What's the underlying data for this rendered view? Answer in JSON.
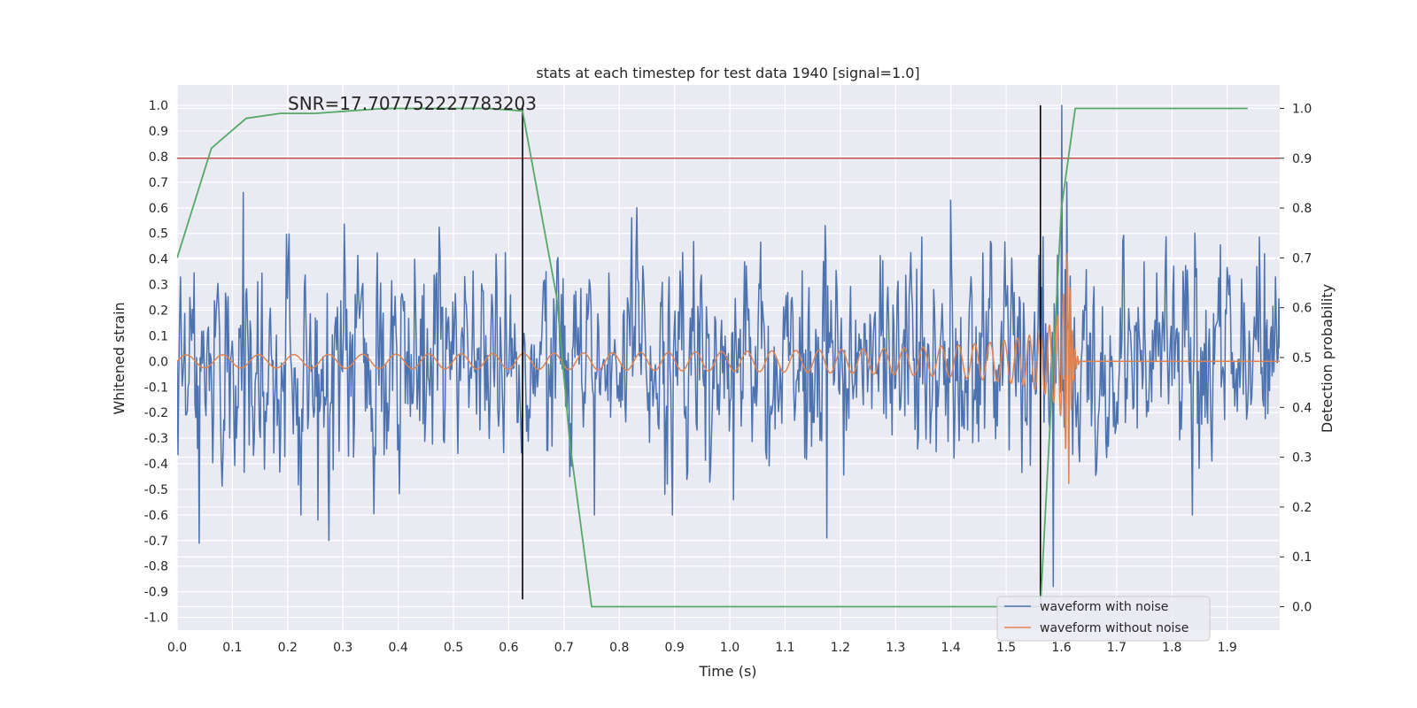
{
  "chart_data": {
    "type": "line",
    "title": "stats at each timestep for test data 1940 [signal=1.0]",
    "annotation": "SNR=17.707752227783203",
    "xlabel": "Time (s)",
    "ylabel_left": "Whitened strain",
    "ylabel_right": "Detection probability",
    "xlim": [
      0.0,
      1.995
    ],
    "ylim_left": [
      -1.05,
      1.08
    ],
    "ylim_right": [
      -0.047,
      1.047
    ],
    "x_ticks": [
      "0.0",
      "0.1",
      "0.2",
      "0.3",
      "0.4",
      "0.5",
      "0.6",
      "0.7",
      "0.8",
      "0.9",
      "1.0",
      "1.1",
      "1.2",
      "1.3",
      "1.4",
      "1.5",
      "1.6",
      "1.7",
      "1.8",
      "1.9"
    ],
    "y_ticks_left": [
      "-1.0",
      "-0.9",
      "-0.8",
      "-0.7",
      "-0.6",
      "-0.5",
      "-0.4",
      "-0.3",
      "-0.2",
      "-0.1",
      "0.0",
      "0.1",
      "0.2",
      "0.3",
      "0.4",
      "0.5",
      "0.6",
      "0.7",
      "0.8",
      "0.9",
      "1.0"
    ],
    "y_ticks_right": [
      "0.0",
      "0.1",
      "0.2",
      "0.3",
      "0.4",
      "0.5",
      "0.6",
      "0.7",
      "0.8",
      "0.9",
      "1.0"
    ],
    "grid": true,
    "legend_position": "bottom-right",
    "colors": {
      "noisy": "#4c72b0",
      "clean": "#dd8452",
      "probability": "#55a868",
      "threshold": "#c44e52",
      "marker": "#000000",
      "background": "#eaeaf2",
      "grid": "#ffffff"
    },
    "series": [
      {
        "name": "waveform with noise",
        "axis": "left",
        "style": "noise",
        "t_range": [
          0.0,
          1.995
        ],
        "std": 0.19,
        "peaks": [
          {
            "x": 0.04,
            "y": -0.71
          },
          {
            "x": 0.12,
            "y": 0.66
          },
          {
            "x": 0.255,
            "y": -0.62
          },
          {
            "x": 0.275,
            "y": -0.7
          },
          {
            "x": 1.175,
            "y": -0.69
          },
          {
            "x": 1.4,
            "y": 0.63
          },
          {
            "x": 1.585,
            "y": -0.88
          },
          {
            "x": 1.6,
            "y": 1.0
          },
          {
            "x": 1.61,
            "y": 0.7
          }
        ]
      },
      {
        "name": "waveform without noise",
        "axis": "left",
        "style": "chirp",
        "t_merger": 1.612,
        "t_end": 1.995,
        "amplitude_start": 0.025,
        "amplitude_peak": 0.62,
        "freq_start": 15,
        "freq_end": 220
      },
      {
        "name": "",
        "axis": "right",
        "style": "line",
        "x": [
          0.0,
          0.062,
          0.125,
          0.187,
          0.25,
          0.312,
          0.375,
          0.437,
          0.5,
          0.562,
          0.625,
          0.687,
          0.711,
          0.75,
          0.812,
          0.875,
          0.937,
          1.0,
          1.062,
          1.125,
          1.187,
          1.25,
          1.312,
          1.375,
          1.437,
          1.5,
          1.562,
          1.6,
          1.625,
          1.687,
          1.75,
          1.812,
          1.875,
          1.937
        ],
        "y": [
          0.7,
          0.92,
          0.98,
          0.99,
          0.99,
          0.995,
          1.0,
          1.0,
          1.0,
          1.0,
          0.995,
          0.62,
          0.325,
          0.0,
          0.0,
          0.0,
          0.0,
          0.0,
          0.0,
          0.0,
          0.0,
          0.0,
          0.0,
          0.0,
          0.0,
          0.0,
          0.0,
          0.8,
          1.0,
          1.0,
          1.0,
          1.0,
          1.0,
          1.0
        ]
      }
    ],
    "threshold": {
      "axis": "right",
      "y": 0.9
    },
    "event_markers": [
      {
        "x": 0.625,
        "y_from": -0.93,
        "y_to": 1.0
      },
      {
        "x": 1.562,
        "y_from": -0.93,
        "y_to": 1.0
      }
    ]
  }
}
